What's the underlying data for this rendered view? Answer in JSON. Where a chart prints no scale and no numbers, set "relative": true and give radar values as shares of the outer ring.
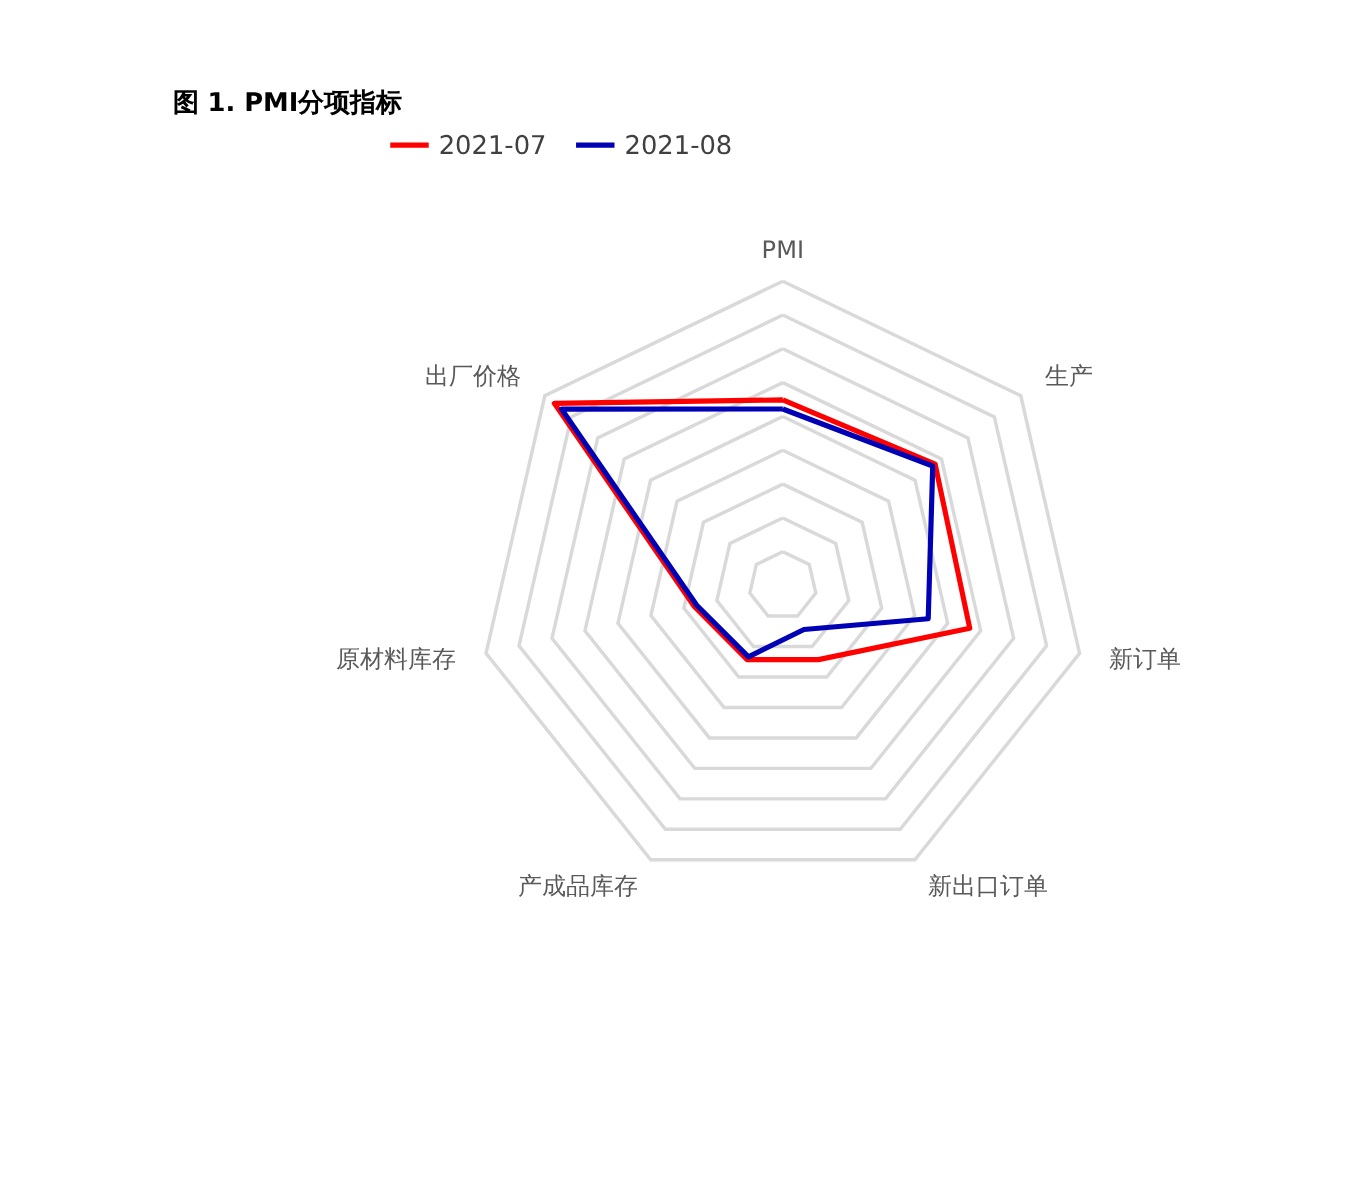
{
  "chart_data": {
    "type": "radar",
    "title": "图 1. PMI分项指标",
    "relative": true,
    "legend": "top",
    "categories": [
      "PMI",
      "生产",
      "新订单",
      "新出口订单",
      "产成品库存",
      "原材料库存",
      "出厂价格"
    ],
    "series": [
      {
        "name": "2021-07",
        "color": "#ff0000",
        "values": [
          0.61,
          0.64,
          0.63,
          0.27,
          0.27,
          0.3,
          0.96
        ]
      },
      {
        "name": "2021-08",
        "color": "#0000b4",
        "values": [
          0.58,
          0.63,
          0.49,
          0.16,
          0.26,
          0.29,
          0.93
        ]
      }
    ]
  }
}
